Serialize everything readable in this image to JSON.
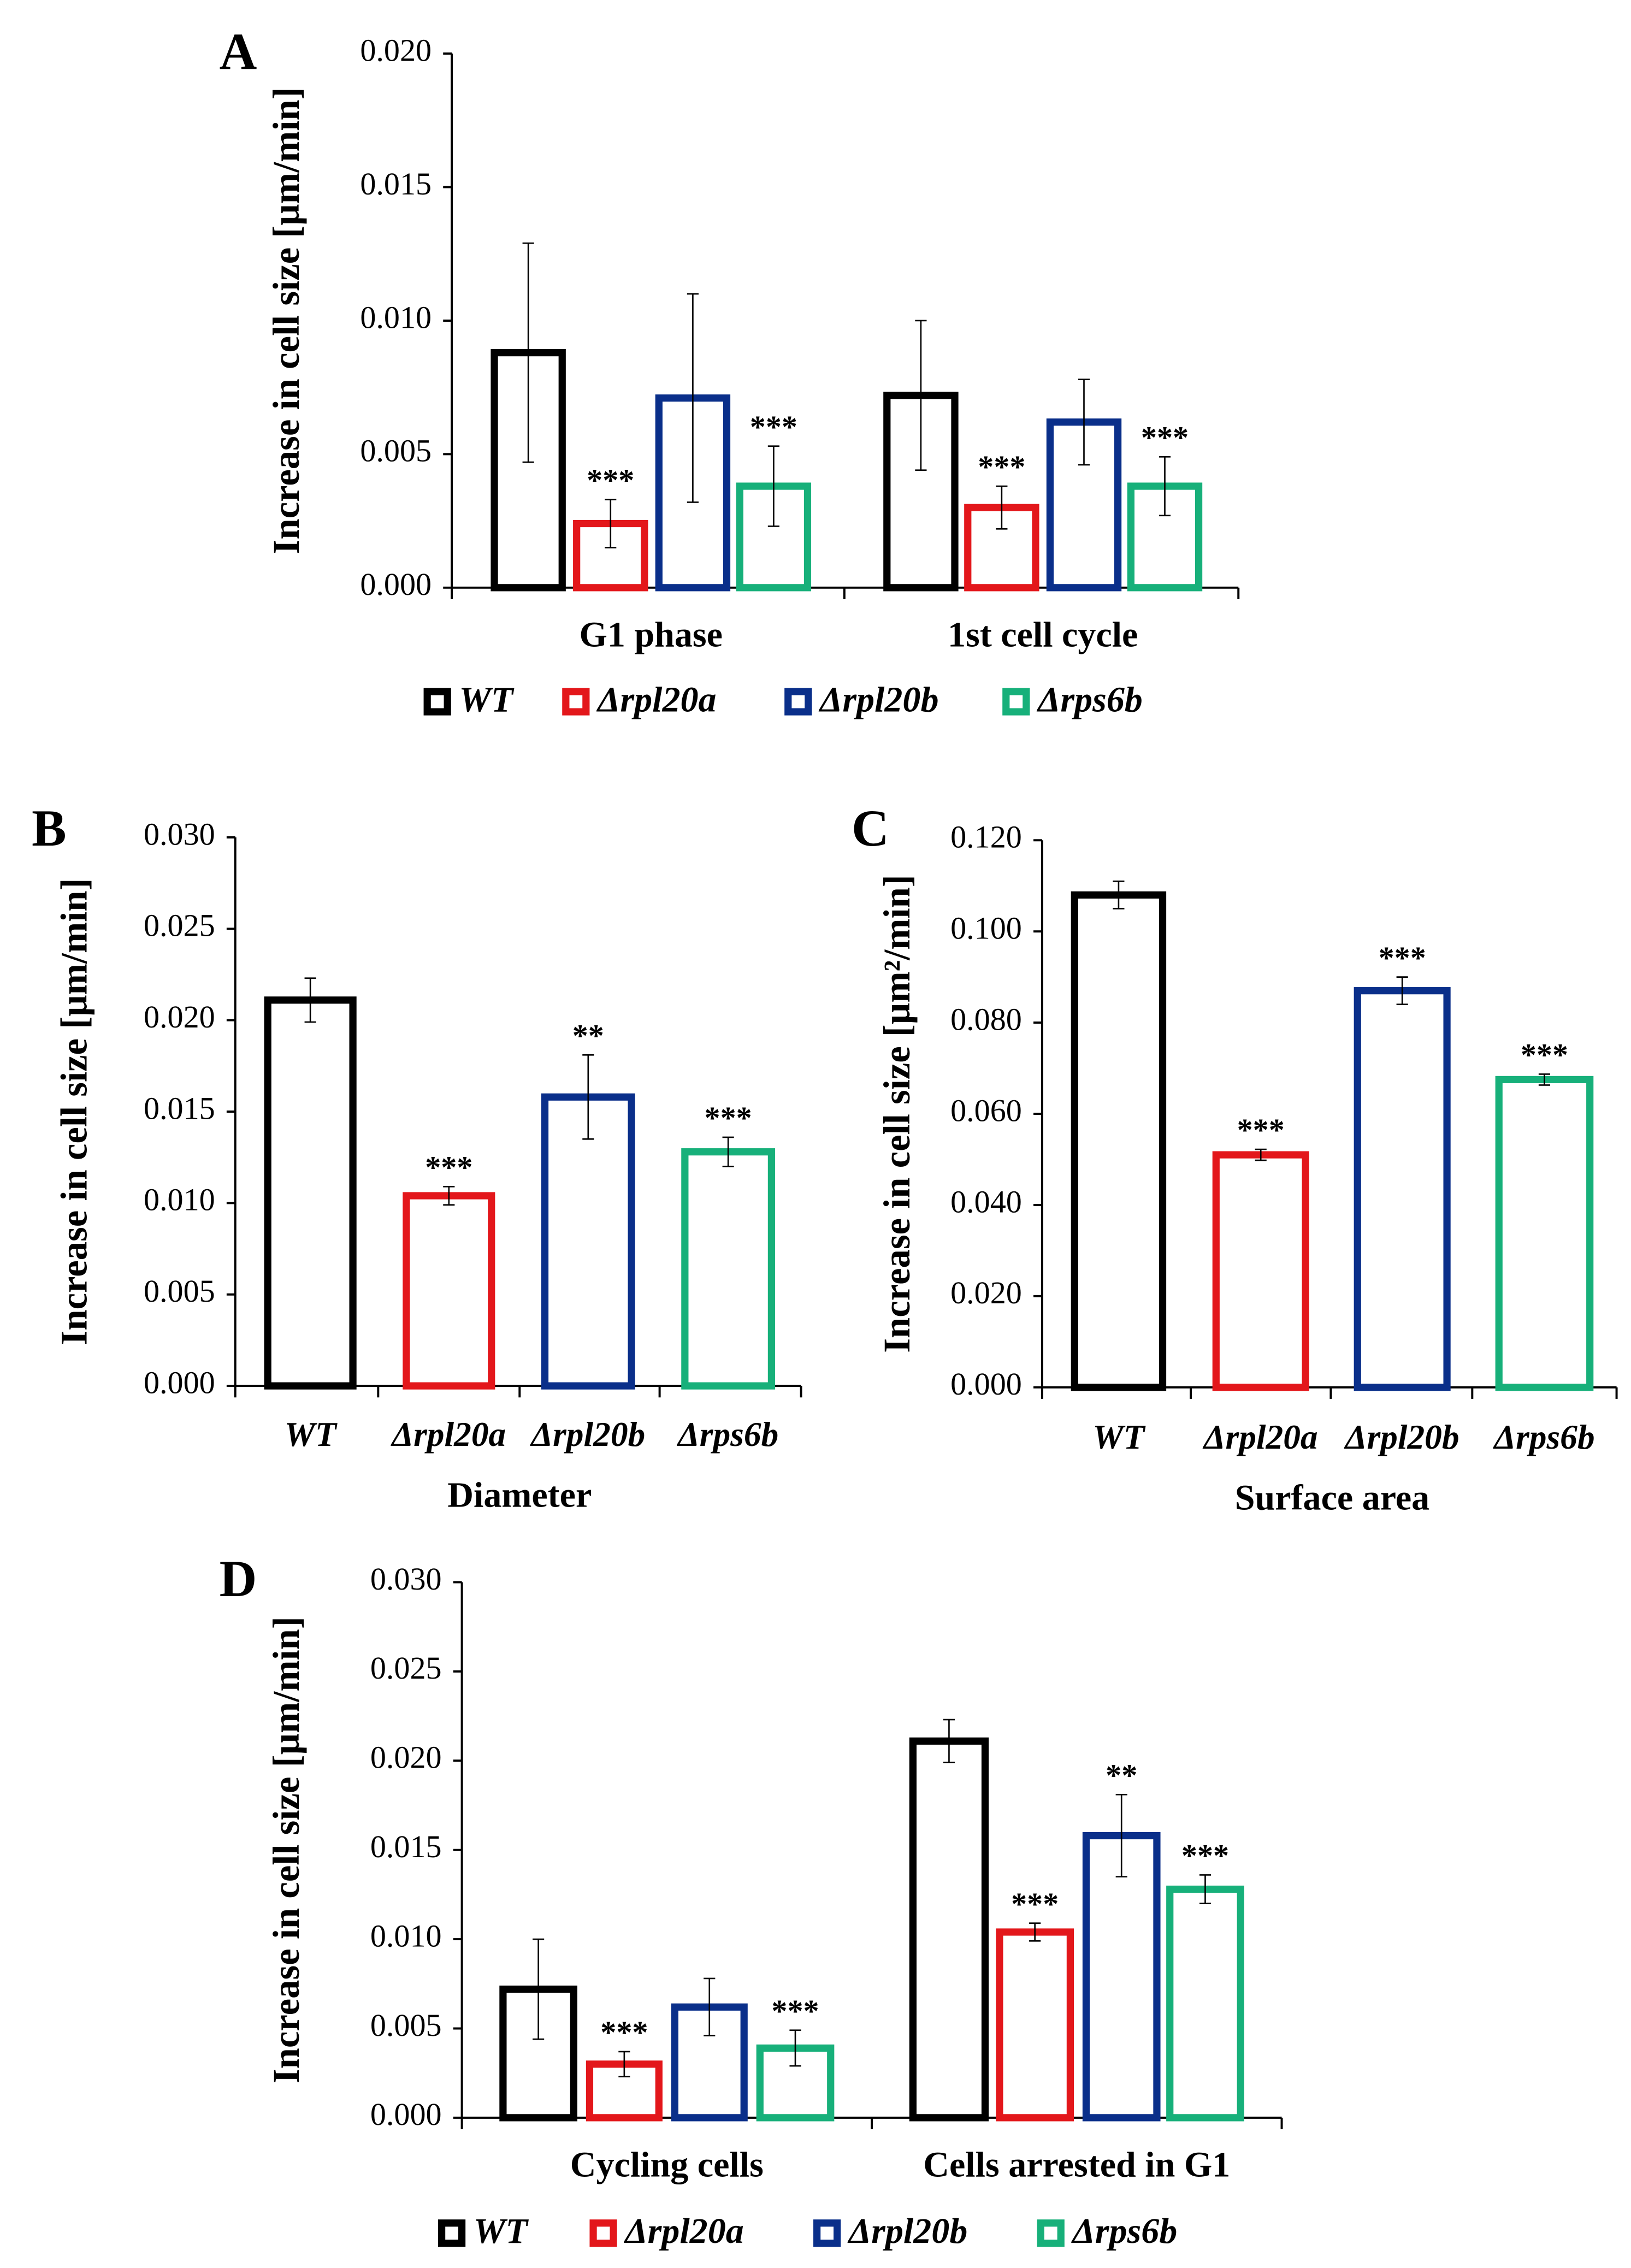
{
  "colors": {
    "WT": "#000000",
    "rpl20a": "#e3171b",
    "rpl20b": "#0a2f8a",
    "rps6b": "#17b07a"
  },
  "legend": [
    "WT",
    "Δrpl20a",
    "Δrpl20b",
    "Δrps6b"
  ],
  "chart_data": [
    {
      "panel": "A",
      "type": "bar",
      "ylabel": "Increase in cell size [µm/min]",
      "ylim": [
        0,
        0.02
      ],
      "yticks": [
        "0.000",
        "0.005",
        "0.010",
        "0.015",
        "0.020"
      ],
      "groups": [
        {
          "label": "G1 phase",
          "values": [
            0.0088,
            0.0024,
            0.0071,
            0.0038
          ],
          "errors": [
            0.0041,
            0.0009,
            0.0039,
            0.0015
          ],
          "stars": [
            "",
            "***",
            "",
            "***"
          ]
        },
        {
          "label": "1st cell cycle",
          "values": [
            0.0072,
            0.003,
            0.0062,
            0.0038
          ],
          "errors": [
            0.0028,
            0.0008,
            0.0016,
            0.0011
          ],
          "stars": [
            "",
            "***",
            "",
            "***"
          ]
        }
      ]
    },
    {
      "panel": "B",
      "type": "bar",
      "ylabel": "Increase in cell size [µm/min]",
      "xlabel": "Diameter",
      "ylim": [
        0,
        0.03
      ],
      "yticks": [
        "0.000",
        "0.005",
        "0.010",
        "0.015",
        "0.020",
        "0.025",
        "0.030"
      ],
      "categories": [
        "WT",
        "Δrpl20a",
        "Δrpl20b",
        "Δrps6b"
      ],
      "values": [
        0.0211,
        0.0104,
        0.0158,
        0.0128
      ],
      "errors": [
        0.0012,
        0.0005,
        0.0023,
        0.0008
      ],
      "stars": [
        "",
        "***",
        "**",
        "***"
      ]
    },
    {
      "panel": "C",
      "type": "bar",
      "ylabel": "Increase in cell size [µm²/min]",
      "xlabel": "Surface area",
      "ylim": [
        0,
        0.12
      ],
      "yticks": [
        "0.000",
        "0.020",
        "0.040",
        "0.060",
        "0.080",
        "0.100",
        "0.120"
      ],
      "categories": [
        "WT",
        "Δrpl20a",
        "Δrpl20b",
        "Δrps6b"
      ],
      "values": [
        0.108,
        0.051,
        0.087,
        0.0675
      ],
      "errors": [
        0.003,
        0.0012,
        0.003,
        0.0012
      ],
      "stars": [
        "",
        "***",
        "***",
        "***"
      ]
    },
    {
      "panel": "D",
      "type": "bar",
      "ylabel": "Increase in cell size [µm/min]",
      "ylim": [
        0,
        0.03
      ],
      "yticks": [
        "0.000",
        "0.005",
        "0.010",
        "0.015",
        "0.020",
        "0.025",
        "0.030"
      ],
      "groups": [
        {
          "label": "Cycling cells",
          "values": [
            0.0072,
            0.003,
            0.0062,
            0.0039
          ],
          "errors": [
            0.0028,
            0.0007,
            0.0016,
            0.001
          ],
          "stars": [
            "",
            "***",
            "",
            "***"
          ]
        },
        {
          "label": "Cells arrested in G1",
          "values": [
            0.0211,
            0.0104,
            0.0158,
            0.0128
          ],
          "errors": [
            0.0012,
            0.0005,
            0.0023,
            0.0008
          ],
          "stars": [
            "",
            "***",
            "**",
            "***"
          ]
        }
      ]
    }
  ]
}
